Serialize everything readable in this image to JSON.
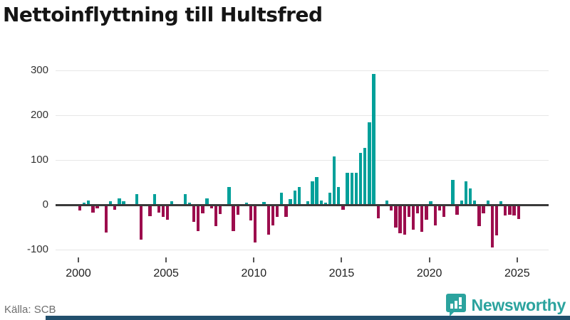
{
  "header": {
    "title": "Nettoinflyttning till Hultsfred"
  },
  "footer": {
    "source": "Källa: SCB",
    "brand": "Newsworthy"
  },
  "colors": {
    "positive": "#00a09a",
    "negative": "#9c0d4d",
    "grid": "#e7e7e7",
    "zero_line": "#3a3a3a",
    "brand_teal": "#2ba39e",
    "bottom_bar": "#22506d",
    "axis_text": "#333333",
    "source_text": "#6e6e6e"
  },
  "chart_data": {
    "type": "bar",
    "title": "Nettoinflyttning till Hultsfred",
    "xlabel": "",
    "ylabel": "",
    "x_start": "2000-Q1",
    "frequency": "quarterly",
    "grid": true,
    "legend": "none",
    "ylim": [
      -120,
      310
    ],
    "y_ticks": [
      300,
      200,
      100,
      0,
      -100
    ],
    "x_ticks": [
      2000,
      2005,
      2010,
      2015,
      2020,
      2025
    ],
    "series": [
      {
        "name": "Nettoinflyttning",
        "values": [
          -12,
          6,
          10,
          -17,
          -8,
          0,
          -61,
          9,
          -11,
          15,
          8,
          0,
          0,
          25,
          -77,
          0,
          -25,
          25,
          -17,
          -26,
          -33,
          8,
          0,
          0,
          25,
          5,
          -38,
          -59,
          -18,
          15,
          -8,
          -47,
          -20,
          0,
          40,
          -59,
          -22,
          0,
          5,
          -34,
          -83,
          0,
          7,
          -66,
          -45,
          -26,
          27,
          -26,
          13,
          32,
          40,
          0,
          8,
          53,
          63,
          10,
          6,
          28,
          108,
          40,
          -10,
          72,
          72,
          72,
          117,
          128,
          184,
          292,
          -29,
          0,
          10,
          -12,
          -50,
          -63,
          -66,
          -26,
          -55,
          -18,
          -60,
          -33,
          9,
          -45,
          -13,
          -26,
          0,
          56,
          -21,
          10,
          53,
          37,
          10,
          -47,
          -18,
          10,
          -95,
          -68,
          9,
          -24,
          -21,
          -24,
          -31
        ]
      }
    ]
  }
}
